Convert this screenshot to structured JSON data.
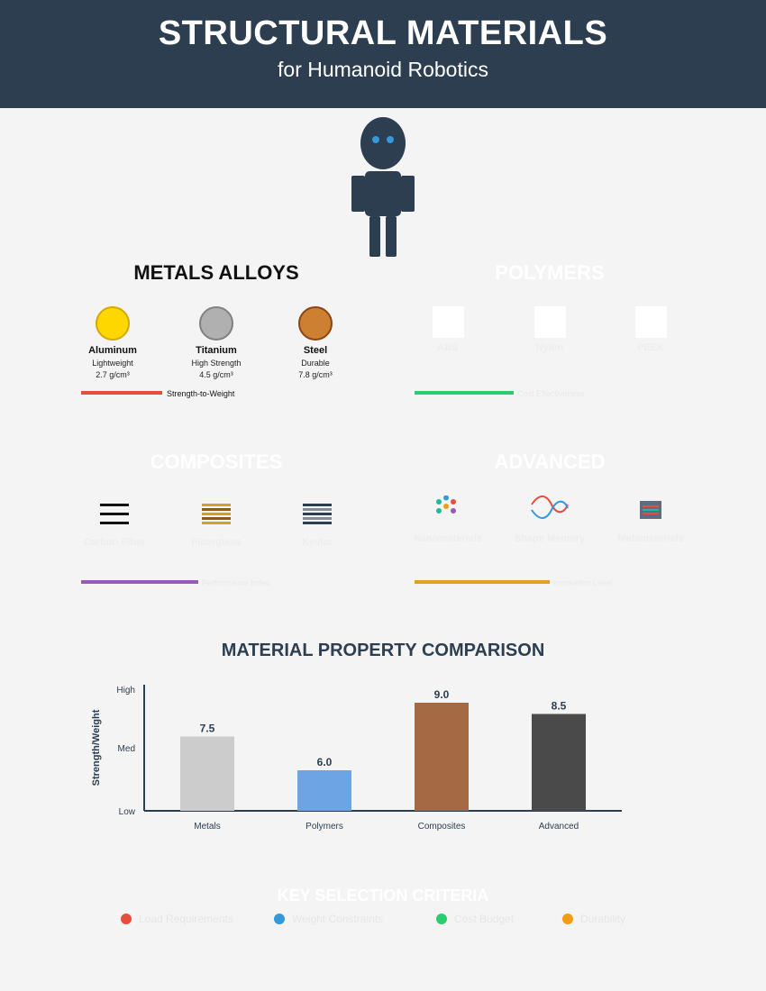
{
  "header": {
    "title": "STRUCTURAL MATERIALS",
    "subtitle": "for Humanoid Robotics"
  },
  "colors": {
    "header_bg": "#2c3e50",
    "robot": "#2c3e50",
    "robot_eyes": "#3498db"
  },
  "sections": {
    "metals": {
      "title": "METALS ALLOYS",
      "items": [
        {
          "name": "Aluminum",
          "desc": "Lightweight",
          "value": "2.7 g/cm³",
          "fill": "#ffd700",
          "stroke": "#d4a800"
        },
        {
          "name": "Titanium",
          "desc": "High Strength",
          "value": "4.5 g/cm³",
          "fill": "#b0b0b0",
          "stroke": "#808080"
        },
        {
          "name": "Steel",
          "desc": "Durable",
          "value": "7.8 g/cm³",
          "fill": "#cd7f32",
          "stroke": "#8b4513"
        }
      ],
      "meter": {
        "label": "Strength-to-Weight",
        "color": "#e74c3c",
        "level": 0.6
      }
    },
    "polymers": {
      "title": "POLYMERS",
      "items": [
        {
          "name": "ABS"
        },
        {
          "name": "Nylon"
        },
        {
          "name": "PEEK"
        }
      ],
      "meter": {
        "label": "Cost Effectiveness",
        "color": "#2ecc71",
        "level": 0.73
      }
    },
    "composites": {
      "title": "COMPOSITES",
      "items": [
        {
          "name": "Carbon Fiber",
          "icon": "stripes-black-icon"
        },
        {
          "name": "Fiberglass",
          "icon": "stripes-gold-icon"
        },
        {
          "name": "Kevlar",
          "icon": "stripes-slate-icon"
        }
      ],
      "meter": {
        "label": "Performance Index",
        "color": "#9b59b6",
        "level": 0.87
      }
    },
    "advanced": {
      "title": "ADVANCED",
      "items": [
        {
          "name": "Nanomaterials",
          "icon": "particles-icon"
        },
        {
          "name": "Shape Memory",
          "icon": "wave-icon"
        },
        {
          "name": "Metamaterials",
          "icon": "lattice-icon"
        }
      ],
      "meter": {
        "label": "Innovation Level",
        "color": "#e0a020",
        "level": 1.0
      }
    }
  },
  "chart_data": {
    "type": "bar",
    "title": "MATERIAL PROPERTY COMPARISON",
    "ylabel": "Strength/Weight",
    "categories": [
      "Metals",
      "Polymers",
      "Composites",
      "Advanced"
    ],
    "values": [
      7.5,
      6.0,
      9.0,
      8.5
    ],
    "value_labels": [
      "7.5",
      "6.0",
      "9.0",
      "8.5"
    ],
    "colors": [
      "#cccccc",
      "#6ca4e4",
      "#a56a43",
      "#4a4a4a"
    ],
    "yticks": [
      {
        "label": "High",
        "value": 9.6
      },
      {
        "label": "Med",
        "value": 7.0
      },
      {
        "label": "Low",
        "value": 4.2
      }
    ],
    "ylim": [
      4.2,
      9.8
    ]
  },
  "criteria": {
    "title": "KEY SELECTION CRITERIA",
    "items": [
      {
        "label": "Load Requirements",
        "color": "#e74c3c"
      },
      {
        "label": "Weight Constraints",
        "color": "#3498db"
      },
      {
        "label": "Cost Budget",
        "color": "#2ecc71"
      },
      {
        "label": "Durability",
        "color": "#f39c12"
      }
    ]
  }
}
